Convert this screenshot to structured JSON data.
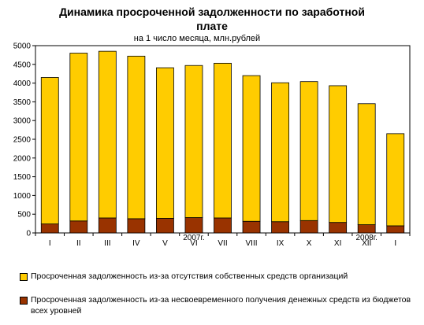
{
  "chart_data": {
    "type": "bar",
    "stacked": true,
    "title": "Динамика просроченной задолженности по заработной плате",
    "title_lines": [
      "Динамика просроченной задолженности по заработной",
      "плате"
    ],
    "subtitle": "на 1 число месяца, млн.рублей",
    "categories": [
      "I",
      "II",
      "III",
      "IV",
      "V",
      "VI",
      "VII",
      "VIII",
      "IX",
      "X",
      "XI",
      "XII",
      "I"
    ],
    "year_labels": [
      {
        "text": "2007г.",
        "after_category_index": 5
      },
      {
        "text": "2008г.",
        "after_category_index": 11
      }
    ],
    "ylim": [
      0,
      5000
    ],
    "yticks": [
      0,
      500,
      1000,
      1500,
      2000,
      2500,
      3000,
      3500,
      4000,
      4500,
      5000
    ],
    "grid": false,
    "legend_position": "bottom",
    "series": [
      {
        "name": "Просроченная задолженность из-за несвоевременного получения денежных средств из бюджетов всех уровней",
        "color": "#993300",
        "values": [
          240,
          320,
          400,
          380,
          390,
          410,
          400,
          310,
          300,
          330,
          280,
          220,
          190
        ]
      },
      {
        "name": "Просроченная задолженность из-за отсутствия собственных средств организаций",
        "color": "#ffcc00",
        "values": [
          3910,
          4480,
          4450,
          4340,
          4020,
          4060,
          4130,
          3890,
          3710,
          3710,
          3650,
          3230,
          2460
        ]
      }
    ]
  }
}
